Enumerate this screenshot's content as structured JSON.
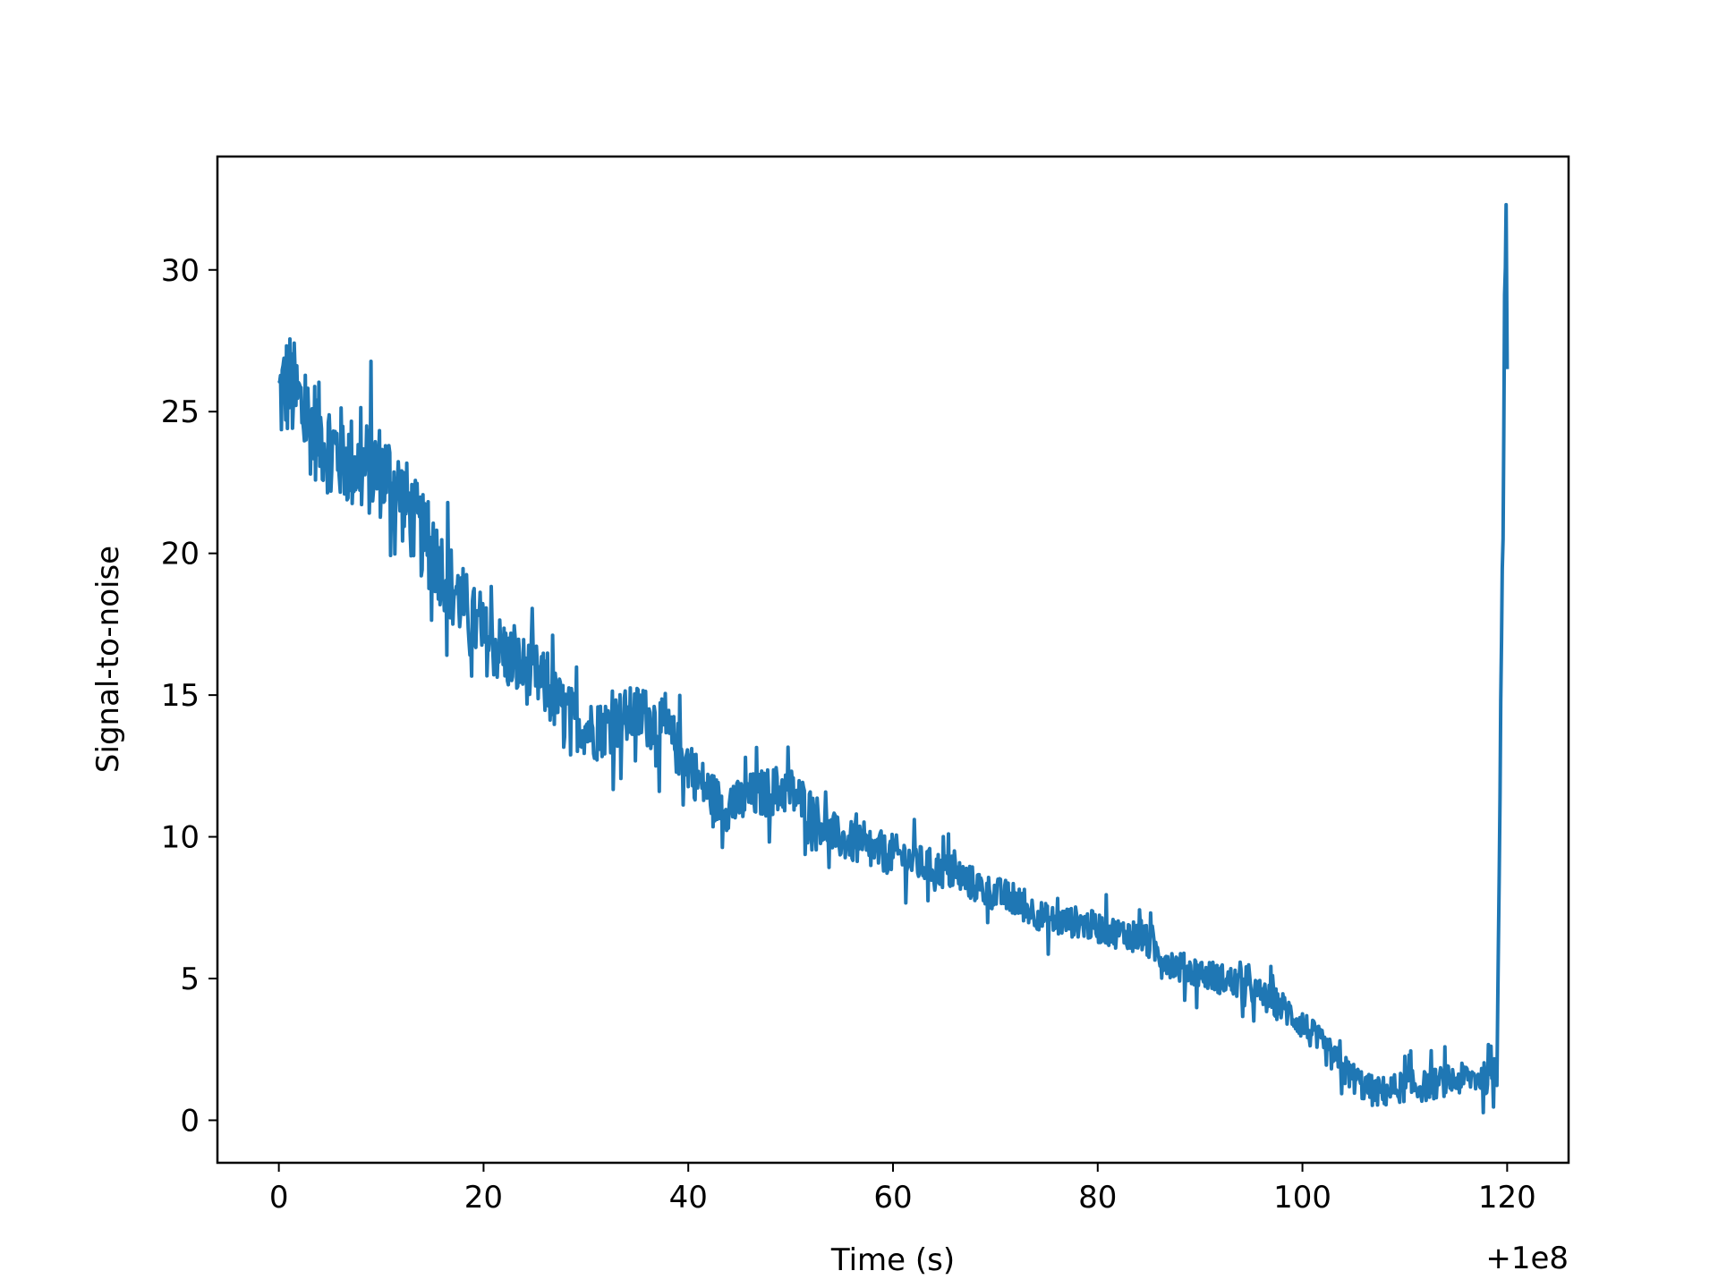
{
  "chart_data": {
    "type": "line",
    "title": "",
    "xlabel": "Time (s)",
    "ylabel": "Signal-to-noise",
    "x_offset_label": "+1e8",
    "x_tick_labels": [
      "0",
      "20",
      "40",
      "60",
      "80",
      "100",
      "120"
    ],
    "y_tick_labels": [
      "0",
      "5",
      "10",
      "15",
      "20",
      "25",
      "30"
    ],
    "x_ticks": [
      0,
      20,
      40,
      60,
      80,
      100,
      120
    ],
    "y_ticks": [
      0,
      5,
      10,
      15,
      20,
      25,
      30
    ],
    "xlim": [
      -6,
      126
    ],
    "ylim": [
      -1.5,
      34
    ],
    "grid": false,
    "series": [
      {
        "color": "#1f77b4",
        "x": [
          0,
          1,
          2,
          3,
          4,
          5,
          6,
          7,
          8,
          9,
          10,
          11,
          12,
          13,
          14,
          15,
          16,
          17,
          18,
          19,
          20,
          21,
          22,
          23,
          24,
          25,
          26,
          27,
          28,
          29,
          30,
          31,
          32,
          33,
          34,
          35,
          36,
          37,
          38,
          39,
          40,
          41,
          42,
          43,
          44,
          45,
          46,
          47,
          48,
          49,
          50,
          51,
          52,
          53,
          54,
          55,
          56,
          57,
          58,
          59,
          60,
          61,
          62,
          63,
          64,
          65,
          66,
          67,
          68,
          69,
          70,
          71,
          72,
          73,
          74,
          75,
          76,
          77,
          78,
          79,
          80,
          81,
          82,
          83,
          84,
          85,
          86,
          87,
          88,
          89,
          90,
          91,
          92,
          93,
          94,
          95,
          96,
          97,
          98,
          99,
          100,
          101,
          102,
          103,
          104,
          105,
          106,
          107,
          108,
          109,
          110,
          111,
          112,
          113,
          114,
          115,
          116,
          117,
          118,
          119,
          119.9,
          120
        ],
        "y": [
          25.5,
          26.0,
          25.2,
          24.6,
          24.2,
          23.8,
          23.5,
          23.2,
          23.0,
          23.0,
          22.9,
          22.6,
          22.0,
          21.3,
          20.6,
          20.0,
          19.5,
          18.8,
          18.2,
          17.6,
          17.0,
          16.8,
          16.5,
          16.1,
          15.9,
          15.7,
          15.3,
          14.8,
          14.4,
          14.1,
          13.9,
          13.7,
          13.9,
          14.1,
          14.2,
          14.3,
          14.2,
          14.0,
          13.6,
          13.1,
          12.6,
          12.0,
          11.6,
          11.2,
          11.0,
          11.2,
          11.4,
          11.5,
          11.6,
          11.7,
          11.6,
          11.3,
          10.9,
          10.5,
          10.1,
          9.9,
          9.8,
          9.6,
          9.5,
          9.4,
          9.4,
          9.3,
          9.1,
          9.0,
          8.9,
          8.8,
          8.7,
          8.5,
          8.3,
          8.1,
          8.0,
          7.9,
          7.7,
          7.5,
          7.3,
          7.1,
          7.0,
          7.0,
          7.0,
          6.9,
          6.8,
          6.7,
          6.6,
          6.6,
          6.5,
          6.2,
          5.9,
          5.6,
          5.4,
          5.3,
          5.2,
          5.1,
          5.0,
          4.9,
          4.8,
          4.6,
          4.4,
          4.2,
          4.0,
          3.7,
          3.4,
          3.0,
          2.6,
          2.2,
          1.8,
          1.5,
          1.2,
          1.0,
          1.0,
          1.1,
          1.2,
          1.2,
          1.2,
          1.3,
          1.4,
          1.4,
          1.5,
          1.5,
          1.5,
          1.6,
          32.3,
          26.5
        ]
      }
    ]
  }
}
